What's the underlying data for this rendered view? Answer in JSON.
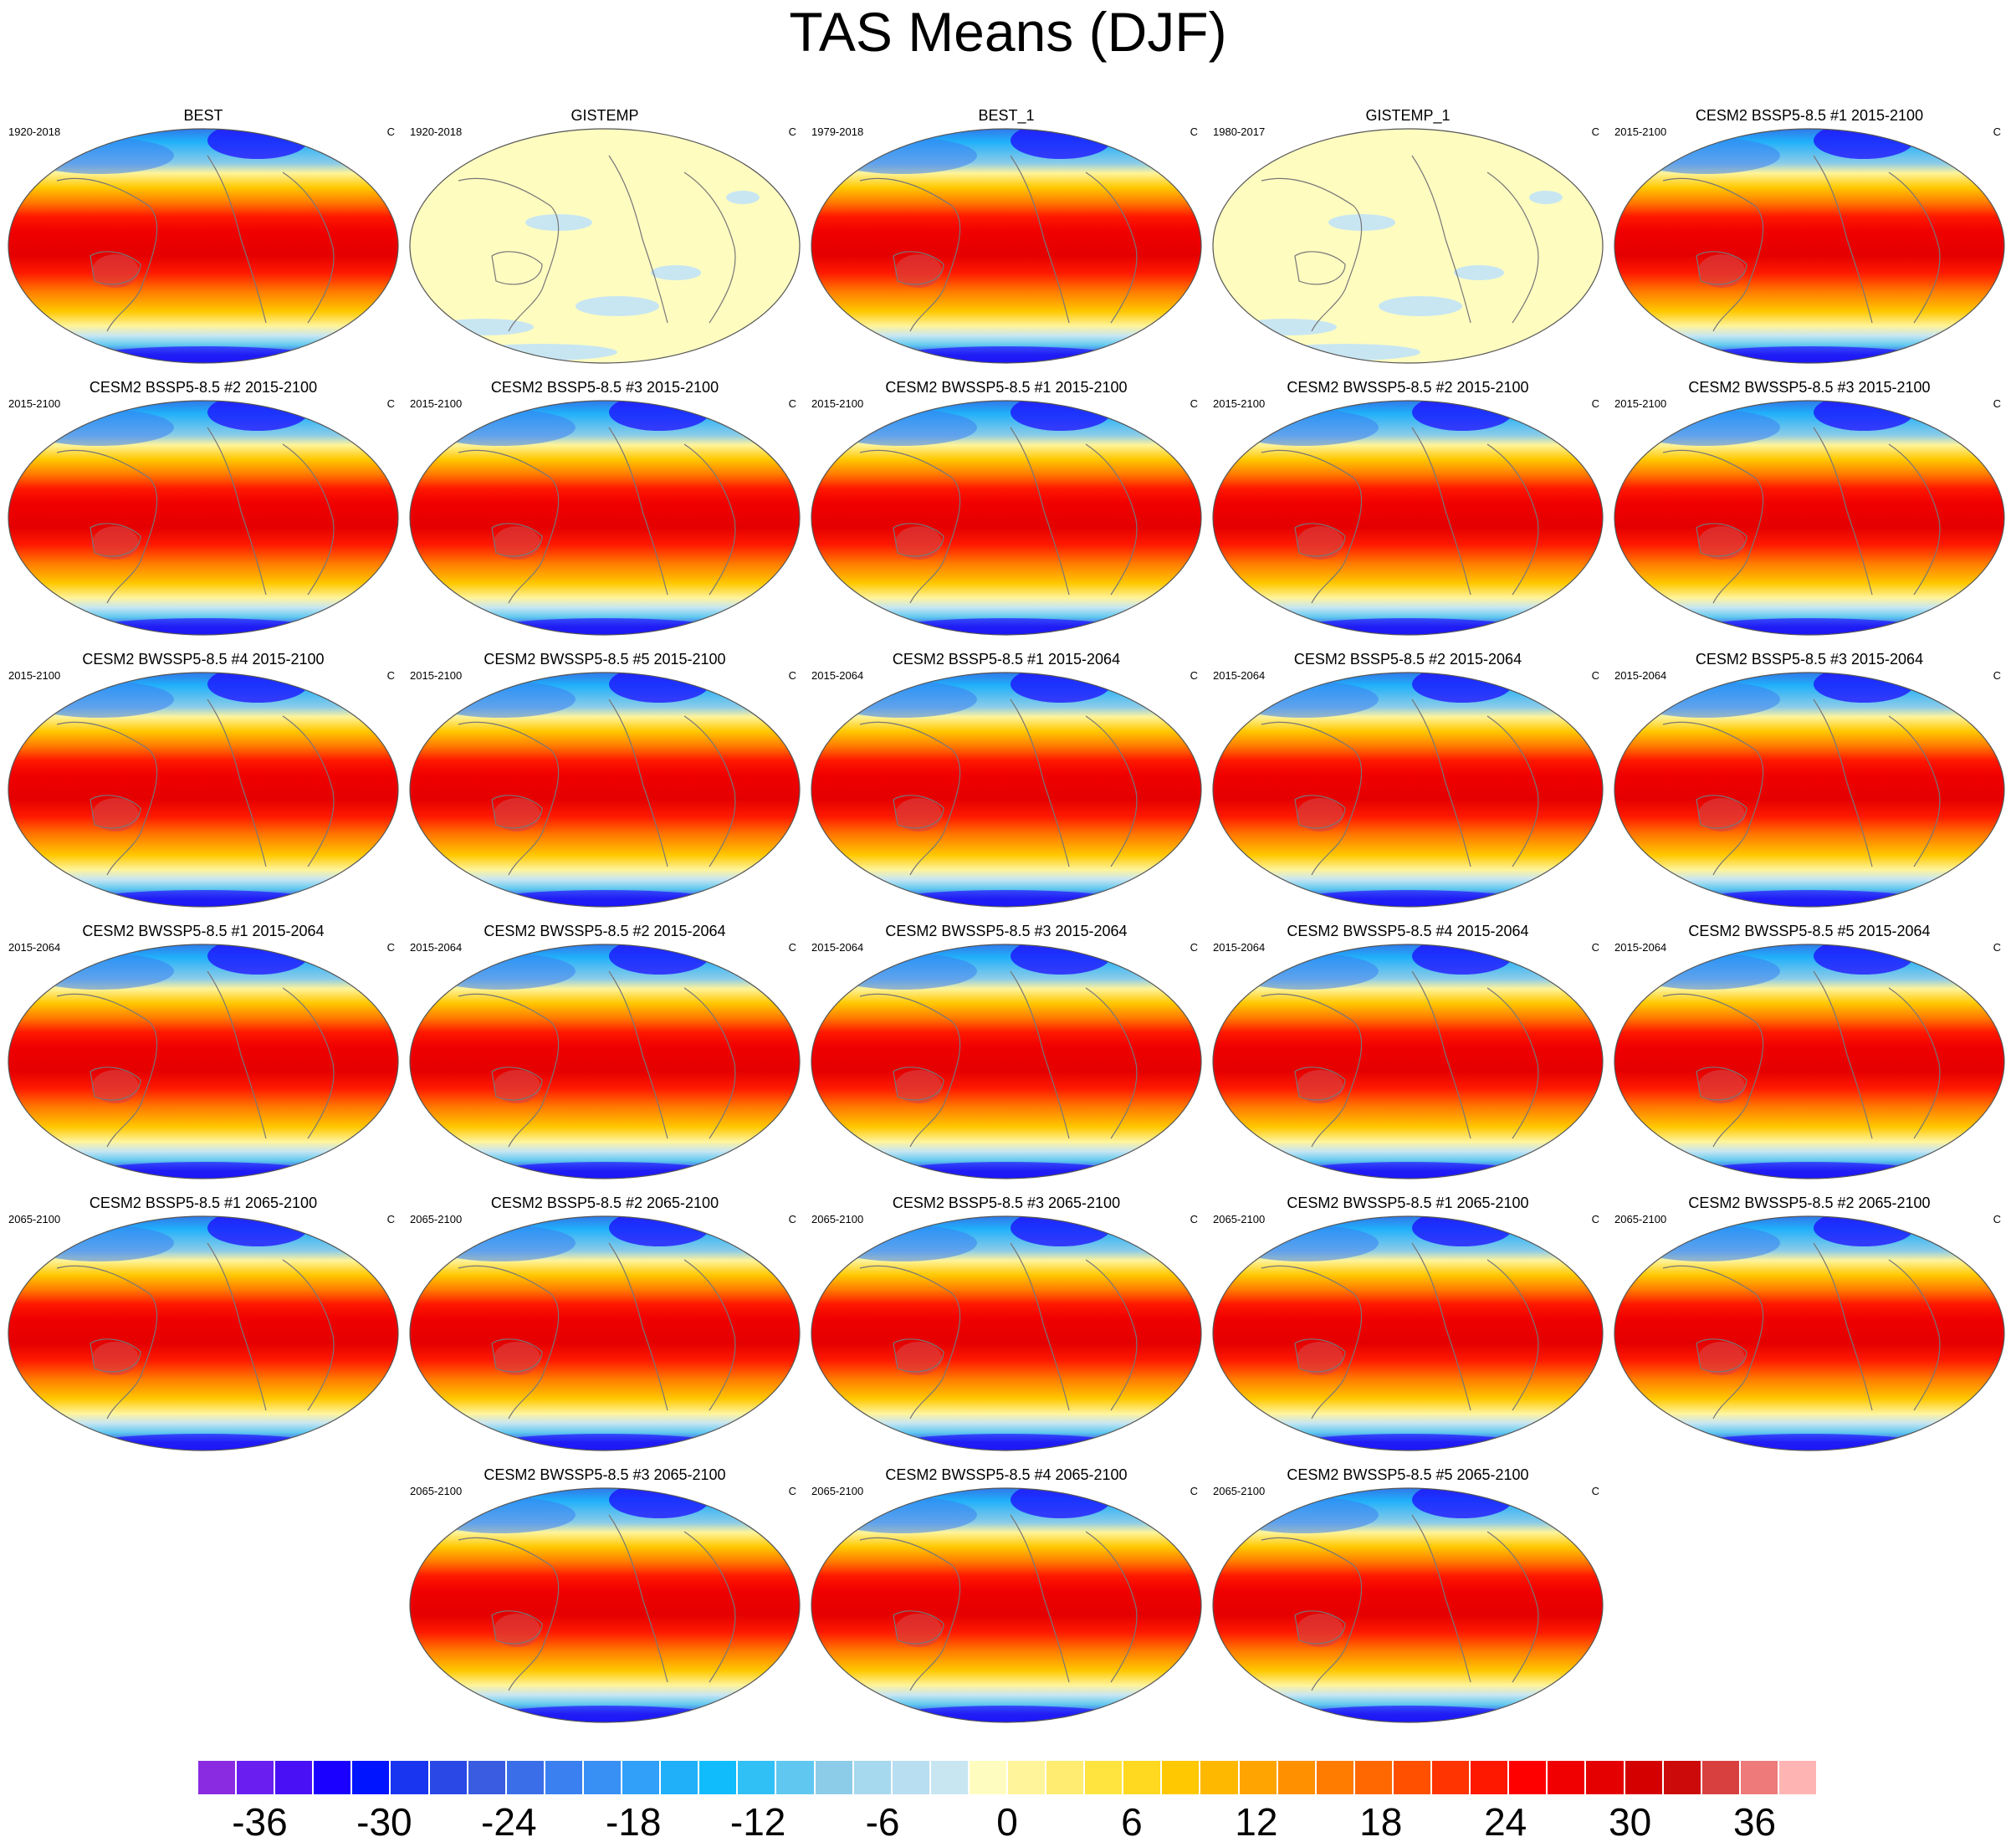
{
  "chart_data": {
    "type": "heatmap",
    "title": "TAS Means (DJF)",
    "units_label": "C",
    "colorbar": {
      "levels": [
        -39,
        -37.5,
        -36,
        -34.5,
        -33,
        -31.5,
        -30,
        -28.5,
        -27,
        -25.5,
        -24,
        -22.5,
        -21,
        -19.5,
        -18,
        -16.5,
        -15,
        -13.5,
        -12,
        -10.5,
        -9,
        -7.5,
        -6,
        -4.5,
        -3,
        -1.5,
        0,
        1.5,
        3,
        4.5,
        6,
        7.5,
        9,
        10.5,
        12,
        13.5,
        15,
        16.5,
        18,
        19.5,
        21,
        22.5,
        24,
        25.5,
        27,
        28.5,
        30,
        31.5,
        33,
        34.5,
        36,
        37.5,
        39
      ],
      "tick_labels": [
        "-36",
        "-30",
        "-24",
        "-18",
        "-12",
        "-6",
        "0",
        "6",
        "12",
        "18",
        "24",
        "30",
        "36"
      ],
      "colors": [
        "#8a2be2",
        "#6a1ff0",
        "#4a10f5",
        "#1a00ff",
        "#0014ff",
        "#1a35f0",
        "#2a48e6",
        "#3a5ce0",
        "#3a6ee8",
        "#3a80f0",
        "#3890f5",
        "#30a0f8",
        "#20b0fa",
        "#10bcfc",
        "#30c0f5",
        "#60c8f0",
        "#8ccce8",
        "#a6d8ee",
        "#b8def2",
        "#c8e6f2",
        "#fffcc0",
        "#fff49a",
        "#ffec70",
        "#ffe440",
        "#ffd820",
        "#ffc800",
        "#ffb800",
        "#ffa400",
        "#ff9000",
        "#ff7c00",
        "#ff6800",
        "#ff5000",
        "#ff3400",
        "#ff1800",
        "#ff0000",
        "#f00000",
        "#e40000",
        "#d40000",
        "#cc0a0a",
        "#d84040",
        "#ee7a7a",
        "#ffb4b4"
      ]
    },
    "panels": [
      {
        "title": "BEST",
        "period": "1920-2018",
        "units": "C",
        "field": "model"
      },
      {
        "title": "GISTEMP",
        "period": "1920-2018",
        "units": "C",
        "field": "gistemp"
      },
      {
        "title": "BEST_1",
        "period": "1979-2018",
        "units": "C",
        "field": "model"
      },
      {
        "title": "GISTEMP_1",
        "period": "1980-2017",
        "units": "C",
        "field": "gistemp"
      },
      {
        "title": "CESM2 BSSP5-8.5 #1 2015-2100",
        "period": "2015-2100",
        "units": "C",
        "field": "model"
      },
      {
        "title": "CESM2 BSSP5-8.5 #2 2015-2100",
        "period": "2015-2100",
        "units": "C",
        "field": "model"
      },
      {
        "title": "CESM2 BSSP5-8.5 #3 2015-2100",
        "period": "2015-2100",
        "units": "C",
        "field": "model"
      },
      {
        "title": "CESM2 BWSSP5-8.5 #1 2015-2100",
        "period": "2015-2100",
        "units": "C",
        "field": "model"
      },
      {
        "title": "CESM2 BWSSP5-8.5 #2 2015-2100",
        "period": "2015-2100",
        "units": "C",
        "field": "model"
      },
      {
        "title": "CESM2 BWSSP5-8.5 #3 2015-2100",
        "period": "2015-2100",
        "units": "C",
        "field": "model"
      },
      {
        "title": "CESM2 BWSSP5-8.5 #4 2015-2100",
        "period": "2015-2100",
        "units": "C",
        "field": "model"
      },
      {
        "title": "CESM2 BWSSP5-8.5 #5 2015-2100",
        "period": "2015-2100",
        "units": "C",
        "field": "model"
      },
      {
        "title": "CESM2 BSSP5-8.5 #1 2015-2064",
        "period": "2015-2064",
        "units": "C",
        "field": "model"
      },
      {
        "title": "CESM2 BSSP5-8.5 #2 2015-2064",
        "period": "2015-2064",
        "units": "C",
        "field": "model"
      },
      {
        "title": "CESM2 BSSP5-8.5 #3 2015-2064",
        "period": "2015-2064",
        "units": "C",
        "field": "model"
      },
      {
        "title": "CESM2 BWSSP5-8.5 #1 2015-2064",
        "period": "2015-2064",
        "units": "C",
        "field": "model"
      },
      {
        "title": "CESM2 BWSSP5-8.5 #2 2015-2064",
        "period": "2015-2064",
        "units": "C",
        "field": "model"
      },
      {
        "title": "CESM2 BWSSP5-8.5 #3 2015-2064",
        "period": "2015-2064",
        "units": "C",
        "field": "model"
      },
      {
        "title": "CESM2 BWSSP5-8.5 #4 2015-2064",
        "period": "2015-2064",
        "units": "C",
        "field": "model"
      },
      {
        "title": "CESM2 BWSSP5-8.5 #5 2015-2064",
        "period": "2015-2064",
        "units": "C",
        "field": "model"
      },
      {
        "title": "CESM2 BSSP5-8.5 #1 2065-2100",
        "period": "2065-2100",
        "units": "C",
        "field": "model"
      },
      {
        "title": "CESM2 BSSP5-8.5 #2 2065-2100",
        "period": "2065-2100",
        "units": "C",
        "field": "model"
      },
      {
        "title": "CESM2 BSSP5-8.5 #3 2065-2100",
        "period": "2065-2100",
        "units": "C",
        "field": "model"
      },
      {
        "title": "CESM2 BWSSP5-8.5 #1 2065-2100",
        "period": "2065-2100",
        "units": "C",
        "field": "model"
      },
      {
        "title": "CESM2 BWSSP5-8.5 #2 2065-2100",
        "period": "2065-2100",
        "units": "C",
        "field": "model"
      },
      {
        "title": "CESM2 BWSSP5-8.5 #3 2065-2100",
        "period": "2065-2100",
        "units": "C",
        "field": "model"
      },
      {
        "title": "CESM2 BWSSP5-8.5 #4 2065-2100",
        "period": "2065-2100",
        "units": "C",
        "field": "model"
      },
      {
        "title": "CESM2 BWSSP5-8.5 #5 2065-2100",
        "period": "2065-2100",
        "units": "C",
        "field": "model"
      }
    ]
  }
}
